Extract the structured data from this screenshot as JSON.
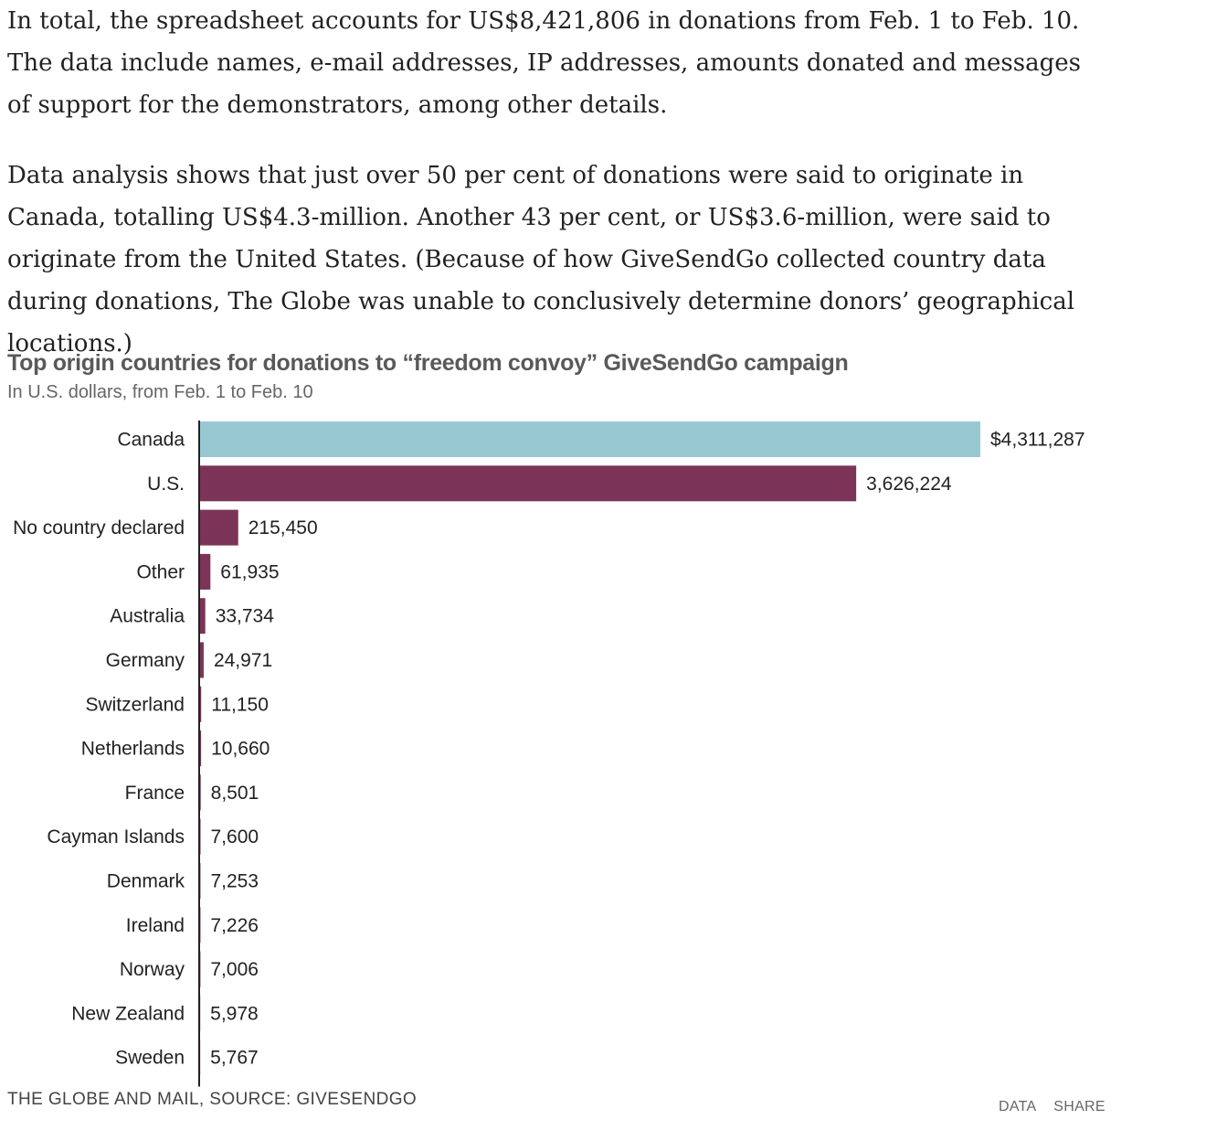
{
  "article": {
    "paragraphs": [
      "In total, the spreadsheet accounts for US$8,421,806 in donations from Feb. 1 to Feb. 10. The data include names, e-mail addresses, IP addresses, amounts donated and messages of support for the demonstrators, among other details.",
      "Data analysis shows that just over 50 per cent of donations were said to originate in Canada, totalling US$4.3-million. Another 43 per cent, or US$3.6-million, were said to originate from the United States. (Because of how GiveSendGo collected country data during donations, The Globe was unable to conclusively determine donors’ geographical locations.)"
    ]
  },
  "chart_data": {
    "type": "bar",
    "orientation": "horizontal",
    "title": "Top origin countries for donations to “freedom convoy” GiveSendGo campaign",
    "subtitle": "In U.S. dollars, from Feb. 1 to Feb. 10",
    "categories": [
      "Canada",
      "U.S.",
      "No country declared",
      "Other",
      "Australia",
      "Germany",
      "Switzerland",
      "Netherlands",
      "France",
      "Cayman Islands",
      "Denmark",
      "Ireland",
      "Norway",
      "New Zealand",
      "Sweden"
    ],
    "values": [
      4311287,
      3626224,
      215450,
      61935,
      33734,
      24971,
      11150,
      10660,
      8501,
      7600,
      7253,
      7226,
      7006,
      5978,
      5767
    ],
    "value_labels": [
      "$4,311,287",
      "3,626,224",
      "215,450",
      "61,935",
      "33,734",
      "24,971",
      "11,150",
      "10,660",
      "8,501",
      "7,600",
      "7,253",
      "7,226",
      "7,006",
      "5,978",
      "5,767"
    ],
    "xlim": [
      0,
      4311287
    ],
    "highlight_category": "Canada",
    "colors": {
      "highlight": "#97c8d2",
      "default": "#7b3457",
      "axis": "#222222"
    },
    "grid": false,
    "legend": "none"
  },
  "footer": {
    "source": "THE GLOBE AND MAIL, SOURCE: GIVESENDGO",
    "data_link": "DATA",
    "share_link": "SHARE"
  }
}
